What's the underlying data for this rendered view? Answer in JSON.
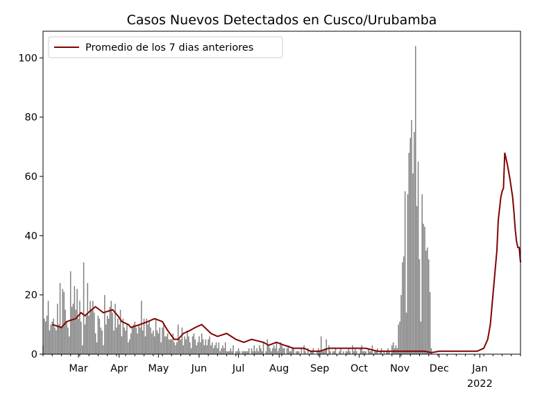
{
  "chart_data": {
    "type": "bar",
    "title": "Casos Nuevos Detectados en Cusco/Urubamba",
    "xlabel": "",
    "ylabel": "",
    "x_start": "2021-02-02",
    "x_end": "2022-02-01",
    "xlim": [
      "2021-02-02",
      "2022-02-01"
    ],
    "ylim": [
      0,
      109
    ],
    "y_ticks": [
      0,
      20,
      40,
      60,
      80,
      100
    ],
    "x_ticks": [
      {
        "date": "2021-03-01",
        "label": "Mar"
      },
      {
        "date": "2021-04-01",
        "label": "Apr"
      },
      {
        "date": "2021-05-01",
        "label": "May"
      },
      {
        "date": "2021-06-01",
        "label": "Jun"
      },
      {
        "date": "2021-07-01",
        "label": "Jul"
      },
      {
        "date": "2021-08-01",
        "label": "Aug"
      },
      {
        "date": "2021-09-01",
        "label": "Sep"
      },
      {
        "date": "2021-10-01",
        "label": "Oct"
      },
      {
        "date": "2021-11-01",
        "label": "Nov"
      },
      {
        "date": "2021-12-01",
        "label": "Dec"
      },
      {
        "date": "2022-01-01",
        "label": "Jan",
        "sublabel": "2022"
      }
    ],
    "grid": false,
    "bar_color": "#808080",
    "line_color": "#800000",
    "legend": {
      "placement": "top-left",
      "entries": [
        {
          "label": "Promedio de los 7 dias anteriores",
          "color": "#800000"
        }
      ]
    },
    "bar_values": [
      3,
      12,
      11,
      13,
      18,
      8,
      10,
      11,
      12,
      9,
      8,
      17,
      10,
      24,
      9,
      22,
      21,
      15,
      11,
      9,
      6,
      28,
      16,
      17,
      23,
      15,
      22,
      12,
      18,
      11,
      3,
      31,
      10,
      13,
      24,
      13,
      18,
      15,
      18,
      14,
      7,
      4,
      13,
      12,
      9,
      8,
      3,
      20,
      10,
      13,
      12,
      16,
      18,
      14,
      8,
      17,
      9,
      12,
      10,
      15,
      6,
      12,
      9,
      8,
      10,
      4,
      5,
      7,
      9,
      10,
      11,
      9,
      7,
      10,
      9,
      18,
      8,
      12,
      6,
      12,
      10,
      11,
      9,
      7,
      8,
      6,
      12,
      8,
      7,
      9,
      4,
      9,
      10,
      6,
      6,
      7,
      5,
      5,
      5,
      7,
      4,
      3,
      4,
      10,
      5,
      5,
      9,
      3,
      6,
      5,
      8,
      6,
      4,
      2,
      6,
      7,
      5,
      3,
      4,
      6,
      4,
      7,
      5,
      3,
      5,
      3,
      5,
      6,
      3,
      4,
      2,
      3,
      4,
      2,
      4,
      1,
      2,
      3,
      2,
      4,
      1,
      1,
      1,
      2,
      1,
      3,
      0,
      1,
      1,
      2,
      1,
      0,
      1,
      1,
      1,
      1,
      1,
      2,
      0,
      2,
      1,
      3,
      1,
      2,
      1,
      3,
      2,
      1,
      4,
      0,
      1,
      5,
      3,
      2,
      1,
      2,
      3,
      2,
      4,
      1,
      2,
      4,
      3,
      2,
      2,
      0,
      2,
      3,
      1,
      1,
      2,
      2,
      0,
      1,
      1,
      1,
      0,
      2,
      0,
      3,
      1,
      0,
      2,
      0,
      1,
      1,
      2,
      0,
      0,
      1,
      2,
      1,
      6,
      1,
      1,
      2,
      5,
      0,
      3,
      1,
      0,
      1,
      1,
      2,
      0,
      0,
      1,
      2,
      0,
      1,
      0,
      1,
      1,
      2,
      1,
      0,
      3,
      1,
      2,
      1,
      0,
      0,
      2,
      3,
      1,
      1,
      1,
      0,
      2,
      1,
      1,
      3,
      0,
      1,
      1,
      2,
      0,
      1,
      2,
      0,
      1,
      0,
      1,
      2,
      1,
      0,
      3,
      4,
      2,
      3,
      2,
      10,
      11,
      20,
      31,
      33,
      55,
      14,
      54,
      68,
      73,
      79,
      61,
      75,
      104,
      50,
      65,
      32,
      11,
      54,
      44,
      43,
      35,
      36,
      32,
      21,
      2
    ],
    "series": [
      {
        "name": "Promedio de los 7 dias anteriores",
        "type": "line",
        "points": [
          [
            7,
            10
          ],
          [
            14,
            9
          ],
          [
            18,
            11
          ],
          [
            25,
            12
          ],
          [
            29,
            14
          ],
          [
            32,
            13
          ],
          [
            37,
            15
          ],
          [
            40,
            16
          ],
          [
            46,
            14
          ],
          [
            53,
            15
          ],
          [
            57,
            13
          ],
          [
            60,
            11
          ],
          [
            65,
            10
          ],
          [
            67,
            9
          ],
          [
            74,
            10
          ],
          [
            80,
            11
          ],
          [
            85,
            12
          ],
          [
            91,
            11
          ],
          [
            95,
            8
          ],
          [
            100,
            5
          ],
          [
            103,
            5
          ],
          [
            107,
            7
          ],
          [
            112,
            8
          ],
          [
            116,
            9
          ],
          [
            121,
            10
          ],
          [
            128,
            7
          ],
          [
            133,
            6
          ],
          [
            140,
            7
          ],
          [
            147,
            5
          ],
          [
            153,
            4
          ],
          [
            159,
            5
          ],
          [
            168,
            4
          ],
          [
            172,
            3
          ],
          [
            178,
            4
          ],
          [
            184,
            3
          ],
          [
            191,
            2
          ],
          [
            199,
            2
          ],
          [
            204,
            1
          ],
          [
            211,
            1
          ],
          [
            218,
            2
          ],
          [
            225,
            2
          ],
          [
            231,
            2
          ],
          [
            238,
            2
          ],
          [
            246,
            2
          ],
          [
            255,
            1
          ],
          [
            263,
            1
          ],
          [
            271,
            1
          ],
          [
            277,
            1
          ],
          [
            284,
            1
          ],
          [
            291,
            1
          ],
          [
            296,
            0.5
          ],
          [
            302,
            1
          ],
          [
            310,
            1
          ],
          [
            317,
            1
          ],
          [
            323,
            1
          ],
          [
            331,
            1
          ],
          [
            336,
            2
          ],
          [
            339,
            5
          ],
          [
            341,
            10
          ],
          [
            342,
            15
          ],
          [
            344,
            25
          ],
          [
            346,
            35
          ],
          [
            347,
            45
          ],
          [
            349,
            53
          ],
          [
            350,
            55
          ],
          [
            351,
            56
          ],
          [
            352,
            68
          ],
          [
            354,
            64
          ],
          [
            356,
            59
          ],
          [
            357,
            56
          ],
          [
            358,
            53
          ],
          [
            359,
            48
          ],
          [
            360,
            42
          ],
          [
            361,
            38
          ],
          [
            362,
            36
          ],
          [
            363,
            36
          ],
          [
            364,
            31
          ]
        ]
      }
    ]
  }
}
